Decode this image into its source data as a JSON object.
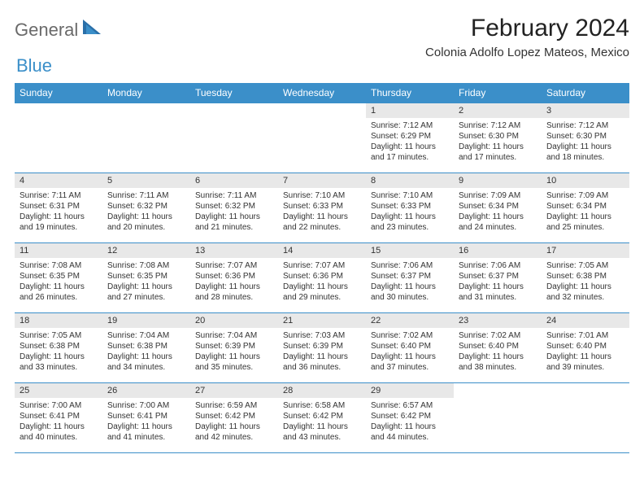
{
  "logo": {
    "textA": "General",
    "textB": "Blue"
  },
  "title": "February 2024",
  "location": "Colonia Adolfo Lopez Mateos, Mexico",
  "colors": {
    "header_bg": "#3b8fc9",
    "header_text": "#ffffff",
    "daynum_bg": "#e8e8e8",
    "border": "#3b8fc9",
    "text": "#333333",
    "logo_gray": "#6a6a6a",
    "logo_blue": "#3b8fc9",
    "page_bg": "#ffffff"
  },
  "typography": {
    "title_fontsize": 30,
    "location_fontsize": 15,
    "weekday_fontsize": 12,
    "daynum_fontsize": 11,
    "body_fontsize": 10
  },
  "weekdays": [
    "Sunday",
    "Monday",
    "Tuesday",
    "Wednesday",
    "Thursday",
    "Friday",
    "Saturday"
  ],
  "first_weekday_index": 4,
  "days": [
    {
      "n": 1,
      "sunrise": "7:12 AM",
      "sunset": "6:29 PM",
      "daylight": "11 hours and 17 minutes."
    },
    {
      "n": 2,
      "sunrise": "7:12 AM",
      "sunset": "6:30 PM",
      "daylight": "11 hours and 17 minutes."
    },
    {
      "n": 3,
      "sunrise": "7:12 AM",
      "sunset": "6:30 PM",
      "daylight": "11 hours and 18 minutes."
    },
    {
      "n": 4,
      "sunrise": "7:11 AM",
      "sunset": "6:31 PM",
      "daylight": "11 hours and 19 minutes."
    },
    {
      "n": 5,
      "sunrise": "7:11 AM",
      "sunset": "6:32 PM",
      "daylight": "11 hours and 20 minutes."
    },
    {
      "n": 6,
      "sunrise": "7:11 AM",
      "sunset": "6:32 PM",
      "daylight": "11 hours and 21 minutes."
    },
    {
      "n": 7,
      "sunrise": "7:10 AM",
      "sunset": "6:33 PM",
      "daylight": "11 hours and 22 minutes."
    },
    {
      "n": 8,
      "sunrise": "7:10 AM",
      "sunset": "6:33 PM",
      "daylight": "11 hours and 23 minutes."
    },
    {
      "n": 9,
      "sunrise": "7:09 AM",
      "sunset": "6:34 PM",
      "daylight": "11 hours and 24 minutes."
    },
    {
      "n": 10,
      "sunrise": "7:09 AM",
      "sunset": "6:34 PM",
      "daylight": "11 hours and 25 minutes."
    },
    {
      "n": 11,
      "sunrise": "7:08 AM",
      "sunset": "6:35 PM",
      "daylight": "11 hours and 26 minutes."
    },
    {
      "n": 12,
      "sunrise": "7:08 AM",
      "sunset": "6:35 PM",
      "daylight": "11 hours and 27 minutes."
    },
    {
      "n": 13,
      "sunrise": "7:07 AM",
      "sunset": "6:36 PM",
      "daylight": "11 hours and 28 minutes."
    },
    {
      "n": 14,
      "sunrise": "7:07 AM",
      "sunset": "6:36 PM",
      "daylight": "11 hours and 29 minutes."
    },
    {
      "n": 15,
      "sunrise": "7:06 AM",
      "sunset": "6:37 PM",
      "daylight": "11 hours and 30 minutes."
    },
    {
      "n": 16,
      "sunrise": "7:06 AM",
      "sunset": "6:37 PM",
      "daylight": "11 hours and 31 minutes."
    },
    {
      "n": 17,
      "sunrise": "7:05 AM",
      "sunset": "6:38 PM",
      "daylight": "11 hours and 32 minutes."
    },
    {
      "n": 18,
      "sunrise": "7:05 AM",
      "sunset": "6:38 PM",
      "daylight": "11 hours and 33 minutes."
    },
    {
      "n": 19,
      "sunrise": "7:04 AM",
      "sunset": "6:38 PM",
      "daylight": "11 hours and 34 minutes."
    },
    {
      "n": 20,
      "sunrise": "7:04 AM",
      "sunset": "6:39 PM",
      "daylight": "11 hours and 35 minutes."
    },
    {
      "n": 21,
      "sunrise": "7:03 AM",
      "sunset": "6:39 PM",
      "daylight": "11 hours and 36 minutes."
    },
    {
      "n": 22,
      "sunrise": "7:02 AM",
      "sunset": "6:40 PM",
      "daylight": "11 hours and 37 minutes."
    },
    {
      "n": 23,
      "sunrise": "7:02 AM",
      "sunset": "6:40 PM",
      "daylight": "11 hours and 38 minutes."
    },
    {
      "n": 24,
      "sunrise": "7:01 AM",
      "sunset": "6:40 PM",
      "daylight": "11 hours and 39 minutes."
    },
    {
      "n": 25,
      "sunrise": "7:00 AM",
      "sunset": "6:41 PM",
      "daylight": "11 hours and 40 minutes."
    },
    {
      "n": 26,
      "sunrise": "7:00 AM",
      "sunset": "6:41 PM",
      "daylight": "11 hours and 41 minutes."
    },
    {
      "n": 27,
      "sunrise": "6:59 AM",
      "sunset": "6:42 PM",
      "daylight": "11 hours and 42 minutes."
    },
    {
      "n": 28,
      "sunrise": "6:58 AM",
      "sunset": "6:42 PM",
      "daylight": "11 hours and 43 minutes."
    },
    {
      "n": 29,
      "sunrise": "6:57 AM",
      "sunset": "6:42 PM",
      "daylight": "11 hours and 44 minutes."
    }
  ],
  "labels": {
    "sunrise": "Sunrise:",
    "sunset": "Sunset:",
    "daylight": "Daylight:"
  }
}
